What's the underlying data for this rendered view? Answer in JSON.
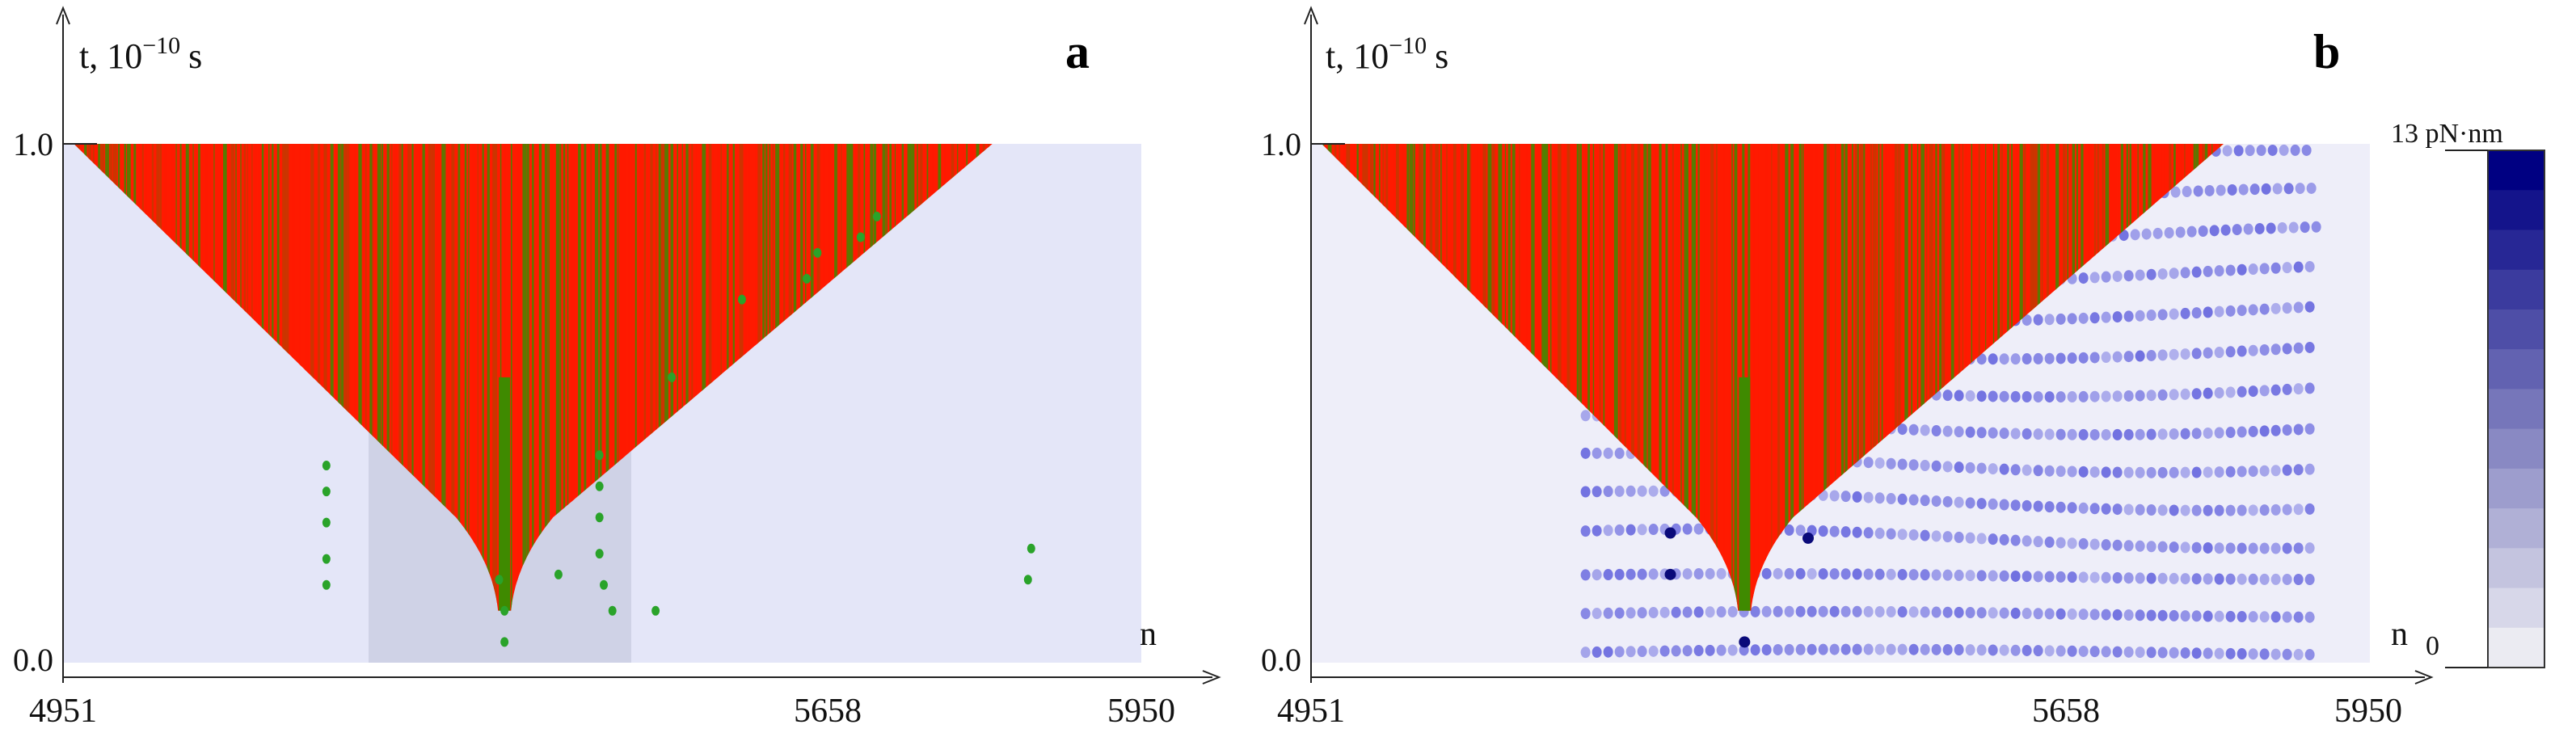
{
  "chart_data": [
    {
      "type": "heatmap",
      "panel_label": "a",
      "xlabel": "n",
      "ylabel": "t, 10^-10 s",
      "ylabel_base": "t, 10",
      "ylabel_exp": "−10",
      "ylabel_unit": "s",
      "xlim": [
        4951,
        5950
      ],
      "ylim": [
        0.0,
        1.0
      ],
      "x_tick_labels": [
        "4951",
        "5658",
        "5950"
      ],
      "x_ticks": [
        4951,
        5658,
        5950
      ],
      "y_tick_labels": [
        "0.0",
        "1.0"
      ],
      "y_ticks": [
        0.0,
        1.0
      ],
      "open_state_region": {
        "t_top": 1.0,
        "n_left_top": 4961,
        "n_right_top": 5812,
        "tip_n": 5360,
        "tip_t": 0.1
      },
      "highlight_band": {
        "n_start": 5200,
        "n_end": 5445
      },
      "colors": {
        "background": "#e4e6f8",
        "band": "#cfd2e6",
        "open_red": "#ff1a00",
        "open_green": "#3f8a00",
        "soliton_green": "#2aa32a"
      }
    },
    {
      "type": "heatmap",
      "panel_label": "b",
      "xlabel": "n",
      "ylabel": "t, 10^-10 s",
      "ylabel_base": "t, 10",
      "ylabel_exp": "−10",
      "ylabel_unit": "s",
      "xlim": [
        4951,
        5950
      ],
      "ylim": [
        0.0,
        1.0
      ],
      "x_tick_labels": [
        "4951",
        "5658",
        "5950"
      ],
      "x_ticks": [
        4951,
        5658,
        5950
      ],
      "y_tick_labels": [
        "0.0",
        "1.0"
      ],
      "y_ticks": [
        0.0,
        1.0
      ],
      "open_state_region": {
        "t_top": 1.0,
        "n_left_top": 4961,
        "n_right_top": 5812,
        "tip_n": 5360,
        "tip_t": 0.1
      },
      "wave_region": {
        "n_start": 5210,
        "n_end": 5900
      },
      "colorbar": {
        "max_label": "13 pN·nm",
        "min_label": "0",
        "max": 13,
        "min": 0,
        "levels": 13
      },
      "colors": {
        "background": "#eeeef9",
        "open_red": "#ff1a00",
        "open_green": "#3f8a00",
        "wave_blue": "#3b3bd6",
        "wave_dark": "#0a0a7a"
      }
    }
  ]
}
